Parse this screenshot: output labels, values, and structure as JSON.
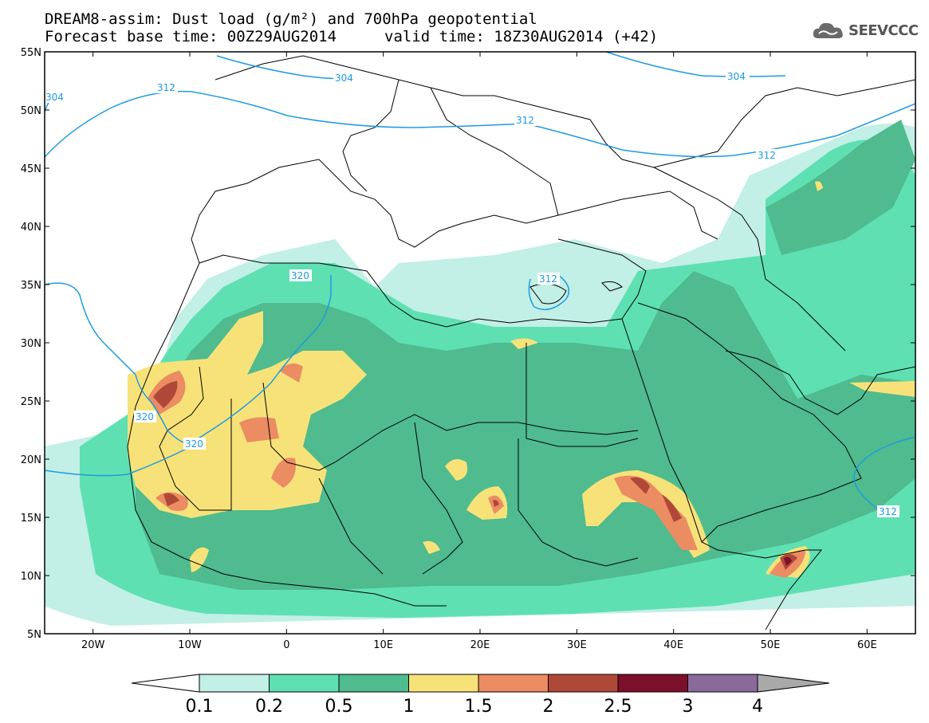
{
  "title": {
    "line1": "DREAM8-assim: Dust load (g/m²) and 700hPa geopotential",
    "line2": "Forecast base time: 00Z29AUG2014",
    "valid": "valid time: 18Z30AUG2014 (+42)"
  },
  "logo": {
    "text": "SEEVCCC",
    "icon": "cloud-logo-icon"
  },
  "map": {
    "lon_range": [
      -25,
      65
    ],
    "lat_range": [
      5,
      55
    ],
    "lat_ticks": [
      "55N",
      "50N",
      "45N",
      "40N",
      "35N",
      "30N",
      "25N",
      "20N",
      "15N",
      "10N",
      "5N"
    ],
    "lon_ticks": [
      "20W",
      "10W",
      "0",
      "10E",
      "20E",
      "30E",
      "40E",
      "50E",
      "60E"
    ],
    "contour_labels": [
      "304",
      "304",
      "304",
      "312",
      "312",
      "312",
      "312",
      "312",
      "320",
      "320",
      "320"
    ],
    "contour_color": "#1e9be0"
  },
  "colorbar": {
    "labels": [
      "0.1",
      "0.2",
      "0.5",
      "1",
      "1.5",
      "2",
      "2.5",
      "3",
      "4"
    ],
    "colors": [
      "#c2efe6",
      "#5ee0b3",
      "#4fbb8e",
      "#f7e27a",
      "#eb8c62",
      "#b04838",
      "#7c0f2a",
      "#8a6a9a"
    ],
    "under_color": "#ffffff",
    "over_color": "#a9a9a9"
  }
}
